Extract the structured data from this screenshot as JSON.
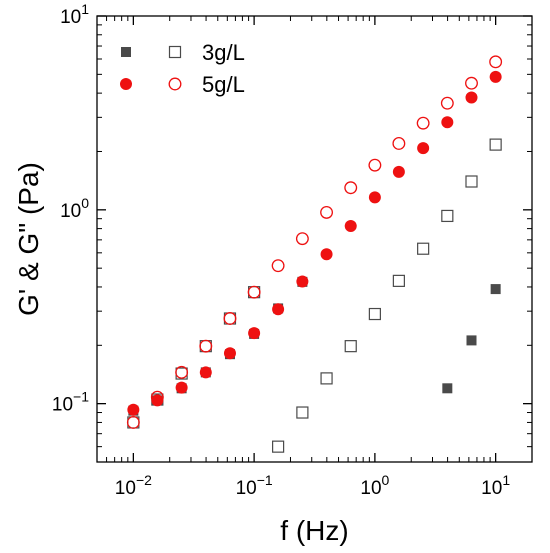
{
  "chart_data": {
    "type": "scatter",
    "xscale": "log",
    "yscale": "log",
    "xlim": [
      0.005,
      20
    ],
    "ylim": [
      0.05,
      10
    ],
    "xlabel": "f (Hz)",
    "ylabel": "G' & G\" (Pa)",
    "x_ticks": [
      {
        "value": 0.01,
        "base": "10",
        "exp": "−2"
      },
      {
        "value": 0.1,
        "base": "10",
        "exp": "−1"
      },
      {
        "value": 1,
        "base": "10",
        "exp": "0"
      },
      {
        "value": 10,
        "base": "10",
        "exp": "1"
      }
    ],
    "y_ticks": [
      {
        "value": 0.1,
        "base": "10",
        "exp": "−1"
      },
      {
        "value": 1,
        "base": "10",
        "exp": "0"
      },
      {
        "value": 10,
        "base": "10",
        "exp": "1"
      }
    ],
    "legend": {
      "placement": "top-left",
      "entries": [
        {
          "label": "3g/L",
          "filled_marker": "square",
          "open_marker": "square",
          "color": "#4a4a4a"
        },
        {
          "label": "5g/L",
          "filled_marker": "circle",
          "open_marker": "circle",
          "color": "#ee1111"
        }
      ]
    },
    "series": [
      {
        "group": "3g/L",
        "marker": "square",
        "filled": true,
        "color": "#4a4a4a",
        "points": [
          [
            0.01,
            0.092
          ],
          [
            0.0158,
            0.104
          ],
          [
            0.0251,
            0.12
          ],
          [
            0.0398,
            0.145
          ],
          [
            0.0631,
            0.18
          ],
          [
            0.1,
            0.229
          ],
          [
            0.158,
            0.31
          ],
          [
            0.251,
            0.425
          ],
          [
            3.98,
            0.12
          ],
          [
            6.31,
            0.212
          ],
          [
            10,
            0.39
          ]
        ]
      },
      {
        "group": "3g/L",
        "marker": "square",
        "filled": false,
        "color": "#4a4a4a",
        "points": [
          [
            0.01,
            0.08
          ],
          [
            0.0158,
            0.105
          ],
          [
            0.0251,
            0.143
          ],
          [
            0.0398,
            0.198
          ],
          [
            0.0631,
            0.275
          ],
          [
            0.1,
            0.376
          ],
          [
            0.158,
            0.06
          ],
          [
            0.251,
            0.09
          ],
          [
            0.398,
            0.135
          ],
          [
            0.631,
            0.198
          ],
          [
            1,
            0.29
          ],
          [
            1.58,
            0.43
          ],
          [
            2.51,
            0.63
          ],
          [
            3.98,
            0.93
          ],
          [
            6.31,
            1.4
          ],
          [
            10,
            2.17
          ]
        ]
      },
      {
        "group": "5g/L",
        "marker": "circle",
        "filled": true,
        "color": "#ee1111",
        "points": [
          [
            0.01,
            0.093
          ],
          [
            0.0158,
            0.104
          ],
          [
            0.0251,
            0.121
          ],
          [
            0.0398,
            0.145
          ],
          [
            0.0631,
            0.182
          ],
          [
            0.1,
            0.231
          ],
          [
            0.158,
            0.307
          ],
          [
            0.251,
            0.427
          ],
          [
            0.398,
            0.59
          ],
          [
            0.631,
            0.825
          ],
          [
            1,
            1.16
          ],
          [
            1.58,
            1.57
          ],
          [
            2.51,
            2.08
          ],
          [
            3.98,
            2.83
          ],
          [
            6.31,
            3.8
          ],
          [
            10,
            4.85
          ]
        ]
      },
      {
        "group": "5g/L",
        "marker": "circle",
        "filled": false,
        "color": "#ee1111",
        "points": [
          [
            0.01,
            0.08
          ],
          [
            0.0158,
            0.108
          ],
          [
            0.0251,
            0.145
          ],
          [
            0.0398,
            0.198
          ],
          [
            0.0631,
            0.275
          ],
          [
            0.1,
            0.376
          ],
          [
            0.158,
            0.515
          ],
          [
            0.251,
            0.71
          ],
          [
            0.398,
            0.97
          ],
          [
            0.631,
            1.3
          ],
          [
            1,
            1.7
          ],
          [
            1.58,
            2.2
          ],
          [
            2.51,
            2.8
          ],
          [
            3.98,
            3.55
          ],
          [
            6.31,
            4.5
          ],
          [
            10,
            5.8
          ]
        ]
      }
    ]
  }
}
